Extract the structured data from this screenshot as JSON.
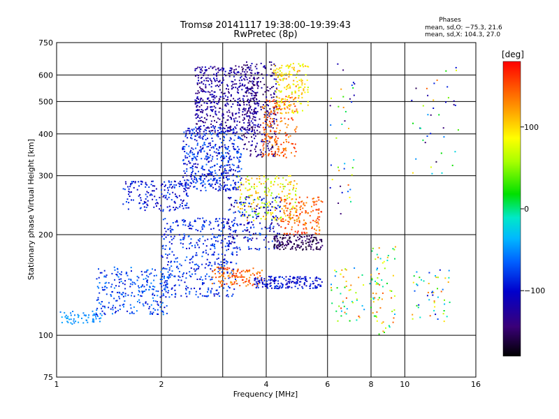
{
  "header": {
    "title_line1": "Tromsø 20141117 19:38:00–19:39:43",
    "title_line2": "RwPretec (8p)",
    "phases_title": "Phases",
    "phases_line1": "mean, sd,O: −75.3, 21.6",
    "phases_line2": "mean, sd,X: 104.3, 27.0"
  },
  "colorbar": {
    "unit_label": "[deg]",
    "ticks": [
      {
        "label": "100",
        "value": 100
      },
      {
        "label": "0",
        "value": 0
      },
      {
        "label": "−100",
        "value": -100
      }
    ],
    "range": [
      -180,
      180
    ]
  },
  "chart_data": {
    "type": "scatter",
    "title": "Tromsø 20141117 19:38:00–19:39:43",
    "subtitle": "RwPretec (8p)",
    "xlabel": "Frequency [MHz]",
    "ylabel": "Stationary phase Virtual Height [km]",
    "x_scale": "log",
    "y_scale": "log",
    "xlim": [
      1,
      16
    ],
    "ylim": [
      75,
      750
    ],
    "x_ticks": [
      {
        "label": "1",
        "value": 1
      },
      {
        "label": "2",
        "value": 2
      },
      {
        "label": "4",
        "value": 4
      },
      {
        "label": "6",
        "value": 6
      },
      {
        "label": "8",
        "value": 8
      },
      {
        "label": "10",
        "value": 10
      },
      {
        "label": "16",
        "value": 16
      }
    ],
    "y_ticks": [
      {
        "label": "75",
        "value": 75
      },
      {
        "label": "100",
        "value": 100
      },
      {
        "label": "200",
        "value": 200
      },
      {
        "label": "300",
        "value": 300
      },
      {
        "label": "400",
        "value": 400
      },
      {
        "label": "500",
        "value": 500
      },
      {
        "label": "600",
        "value": 600
      },
      {
        "label": "750",
        "value": 750
      }
    ],
    "extra_grid_x": [
      3
    ],
    "grid": true,
    "color_variable": "phase [deg]",
    "color_range": [
      -180,
      180
    ],
    "clusters": [
      {
        "f": [
          1.0,
          1.35
        ],
        "h": [
          108,
          118
        ],
        "phase": [
          -60,
          -40
        ],
        "n": 60
      },
      {
        "f": [
          1.3,
          2.1
        ],
        "h": [
          115,
          160
        ],
        "phase": [
          -100,
          -50
        ],
        "n": 260
      },
      {
        "f": [
          2.0,
          3.3
        ],
        "h": [
          130,
          225
        ],
        "phase": [
          -110,
          -60
        ],
        "n": 420
      },
      {
        "f": [
          1.55,
          2.4
        ],
        "h": [
          235,
          290
        ],
        "phase": [
          -120,
          -70
        ],
        "n": 180
      },
      {
        "f": [
          2.3,
          3.4
        ],
        "h": [
          270,
          420
        ],
        "phase": [
          -120,
          -60
        ],
        "n": 480
      },
      {
        "f": [
          2.5,
          3.8
        ],
        "h": [
          400,
          640
        ],
        "phase": [
          -150,
          -100
        ],
        "n": 520
      },
      {
        "f": [
          3.4,
          4.3
        ],
        "h": [
          340,
          660
        ],
        "phase": [
          -160,
          -110
        ],
        "n": 260
      },
      {
        "f": [
          3.9,
          4.9
        ],
        "h": [
          340,
          520
        ],
        "phase": [
          120,
          170
        ],
        "n": 180
      },
      {
        "f": [
          4.2,
          5.3
        ],
        "h": [
          460,
          650
        ],
        "phase": [
          60,
          130
        ],
        "n": 170
      },
      {
        "f": [
          3.3,
          4.9
        ],
        "h": [
          220,
          300
        ],
        "phase": [
          40,
          130
        ],
        "n": 200
      },
      {
        "f": [
          3.1,
          4.4
        ],
        "h": [
          180,
          260
        ],
        "phase": [
          -140,
          -60
        ],
        "n": 200
      },
      {
        "f": [
          4.2,
          5.8
        ],
        "h": [
          180,
          200
        ],
        "phase": [
          -170,
          -140
        ],
        "n": 150
      },
      {
        "f": [
          4.4,
          5.8
        ],
        "h": [
          200,
          260
        ],
        "phase": [
          120,
          170
        ],
        "n": 150
      },
      {
        "f": [
          2.8,
          3.9
        ],
        "h": [
          140,
          160
        ],
        "phase": [
          120,
          170
        ],
        "n": 120
      },
      {
        "f": [
          3.7,
          5.8
        ],
        "h": [
          138,
          150
        ],
        "phase": [
          -120,
          -80
        ],
        "n": 180
      },
      {
        "f": [
          6.1,
          8.5
        ],
        "h": [
          110,
          160
        ],
        "phase": [
          -60,
          170
        ],
        "n": 60
      },
      {
        "f": [
          8.0,
          9.4
        ],
        "h": [
          100,
          185
        ],
        "phase": [
          -40,
          150
        ],
        "n": 60
      },
      {
        "f": [
          10.5,
          13.5
        ],
        "h": [
          110,
          160
        ],
        "phase": [
          -120,
          150
        ],
        "n": 50
      },
      {
        "f": [
          10.3,
          14.5
        ],
        "h": [
          300,
          650
        ],
        "phase": [
          -160,
          160
        ],
        "n": 40
      },
      {
        "f": [
          6.1,
          7.2
        ],
        "h": [
          220,
          650
        ],
        "phase": [
          -150,
          160
        ],
        "n": 40
      }
    ]
  }
}
